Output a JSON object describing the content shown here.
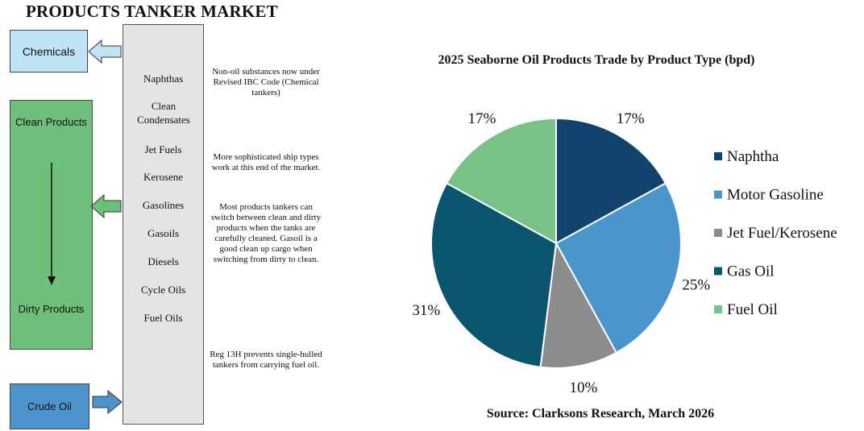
{
  "title": "PRODUCTS TANKER MARKET",
  "left_panel": {
    "chemicals_label": "Chemicals",
    "clean_products_label": "Clean Products",
    "dirty_products_label": "Dirty Products",
    "crude_oil_label": "Crude Oil",
    "products": [
      "Naphthas",
      "Clean Condensates",
      "Jet Fuels",
      "Kerosene",
      "Gasolines",
      "Gasoils",
      "Diesels",
      "Cycle Oils",
      "Fuel Oils"
    ],
    "notes": [
      "Non-oil substances now under Revised IBC Code (Chemical tankers)",
      "More sophisticated ship types work at this end of the market.",
      "Most products tankers can switch between clean and dirty products when the tanks are carefully cleaned. Gasoil is a good clean up cargo when switching from dirty to clean.",
      "Reg 13H prevents single-hulled tankers from carrying fuel oil."
    ],
    "colors": {
      "chemicals": "#bfe4f6",
      "clean": "#6dbf79",
      "crude": "#4e94cc",
      "column": "#e4e4e4"
    }
  },
  "chart_data": {
    "type": "pie",
    "title": "2025 Seaborne Oil Products Trade by Product Type (bpd)",
    "categories": [
      "Naphtha",
      "Motor Gasoline",
      "Jet Fuel/Kerosene",
      "Gas Oil",
      "Fuel Oil"
    ],
    "values": [
      17,
      25,
      10,
      31,
      17
    ],
    "labels": [
      "17%",
      "25%",
      "10%",
      "31%",
      "17%"
    ],
    "colors": [
      "#12436d",
      "#4a96cc",
      "#8c8c8c",
      "#0b5570",
      "#78c187"
    ],
    "legend_position": "right",
    "source": "Source: Clarksons Research, March 2026"
  }
}
